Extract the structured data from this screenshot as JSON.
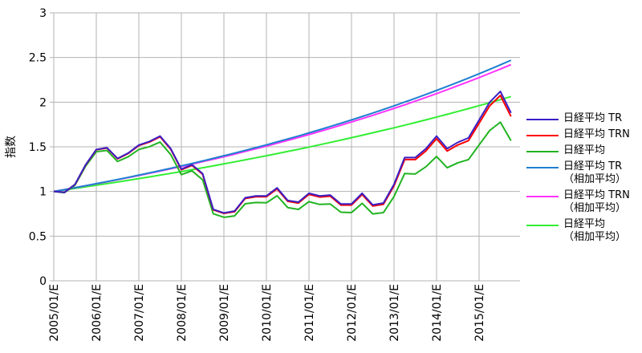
{
  "chart_data": {
    "type": "line",
    "y_label": "指数",
    "categories": [
      "2005/01/E",
      null,
      null,
      null,
      "2006/01/E",
      null,
      null,
      null,
      "2007/01/E",
      null,
      null,
      null,
      "2008/01/E",
      null,
      null,
      null,
      "2009/01/E",
      null,
      null,
      null,
      "2010/01/E",
      null,
      null,
      null,
      "2011/01/E",
      null,
      null,
      null,
      "2012/01/E",
      null,
      null,
      null,
      "2013/01/E",
      null,
      null,
      null,
      "2014/01/E",
      null,
      null,
      null,
      "2015/01/E",
      null,
      null,
      null
    ],
    "ylim": [
      0,
      3
    ],
    "yticks": [
      0,
      0.5,
      1,
      1.5,
      2,
      2.5,
      3
    ],
    "grid": true,
    "legend": "right",
    "series": [
      {
        "name": "日経平均 TR",
        "color": "#3c1fc4",
        "values": [
          1.0,
          0.99,
          1.08,
          1.3,
          1.47,
          1.49,
          1.37,
          1.43,
          1.52,
          1.56,
          1.62,
          1.48,
          1.25,
          1.3,
          1.2,
          0.8,
          0.76,
          0.78,
          0.93,
          0.95,
          0.95,
          1.04,
          0.9,
          0.88,
          0.98,
          0.95,
          0.96,
          0.86,
          0.86,
          0.98,
          0.85,
          0.87,
          1.08,
          1.38,
          1.38,
          1.48,
          1.62,
          1.48,
          1.55,
          1.6,
          1.8,
          2.0,
          2.12,
          1.88
        ]
      },
      {
        "name": "日経平均 TRN",
        "color": "#ff0000",
        "values": [
          1.0,
          0.99,
          1.079,
          1.298,
          1.467,
          1.486,
          1.366,
          1.425,
          1.514,
          1.553,
          1.612,
          1.472,
          1.243,
          1.292,
          1.192,
          0.794,
          0.754,
          0.773,
          0.922,
          0.941,
          0.941,
          1.029,
          0.89,
          0.87,
          0.968,
          0.938,
          0.948,
          0.848,
          0.848,
          0.966,
          0.837,
          0.857,
          1.063,
          1.357,
          1.357,
          1.454,
          1.591,
          1.453,
          1.521,
          1.569,
          1.764,
          1.959,
          2.075,
          1.84
        ]
      },
      {
        "name": "日経平均",
        "color": "#22b422",
        "values": [
          1.0,
          0.986,
          1.071,
          1.284,
          1.445,
          1.459,
          1.336,
          1.388,
          1.47,
          1.502,
          1.553,
          1.413,
          1.188,
          1.231,
          1.131,
          0.751,
          0.711,
          0.726,
          0.862,
          0.877,
          0.873,
          0.952,
          0.82,
          0.799,
          0.886,
          0.855,
          0.86,
          0.768,
          0.764,
          0.867,
          0.749,
          0.763,
          0.944,
          1.201,
          1.196,
          1.277,
          1.392,
          1.266,
          1.321,
          1.357,
          1.521,
          1.683,
          1.776,
          1.569
        ]
      },
      {
        "name": "日経平均 TR\n（相加平均）",
        "color": "#1f7fd0",
        "values": [
          1.0,
          1.021,
          1.043,
          1.065,
          1.088,
          1.111,
          1.134,
          1.158,
          1.183,
          1.208,
          1.234,
          1.26,
          1.287,
          1.314,
          1.342,
          1.371,
          1.4,
          1.429,
          1.46,
          1.491,
          1.522,
          1.555,
          1.588,
          1.621,
          1.656,
          1.691,
          1.727,
          1.764,
          1.801,
          1.839,
          1.878,
          1.918,
          1.959,
          2.001,
          2.043,
          2.087,
          2.131,
          2.176,
          2.223,
          2.27,
          2.318,
          2.367,
          2.418,
          2.469
        ]
      },
      {
        "name": "日経平均 TRN\n（相加平均）",
        "color": "#ff33ff",
        "values": [
          1.0,
          1.021,
          1.042,
          1.064,
          1.086,
          1.108,
          1.131,
          1.155,
          1.179,
          1.203,
          1.228,
          1.254,
          1.28,
          1.306,
          1.334,
          1.361,
          1.389,
          1.418,
          1.448,
          1.478,
          1.508,
          1.54,
          1.572,
          1.604,
          1.637,
          1.671,
          1.706,
          1.742,
          1.778,
          1.815,
          1.852,
          1.891,
          1.93,
          1.97,
          2.011,
          2.053,
          2.096,
          2.139,
          2.184,
          2.229,
          2.275,
          2.323,
          2.371,
          2.42
        ]
      },
      {
        "name": "日経平均\n（相加平均）",
        "color": "#33ee33",
        "values": [
          1.0,
          1.017,
          1.034,
          1.052,
          1.07,
          1.088,
          1.106,
          1.125,
          1.144,
          1.163,
          1.183,
          1.203,
          1.223,
          1.244,
          1.265,
          1.287,
          1.309,
          1.331,
          1.354,
          1.377,
          1.4,
          1.424,
          1.448,
          1.472,
          1.497,
          1.523,
          1.549,
          1.575,
          1.602,
          1.629,
          1.657,
          1.685,
          1.713,
          1.742,
          1.772,
          1.802,
          1.833,
          1.864,
          1.896,
          1.928,
          1.961,
          1.994,
          2.028,
          2.062
        ]
      }
    ]
  }
}
